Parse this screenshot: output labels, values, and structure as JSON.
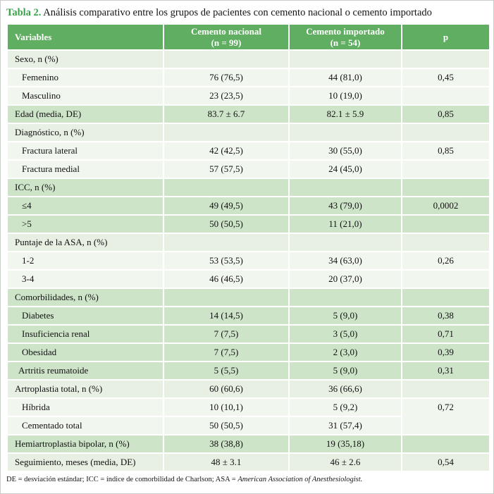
{
  "title": {
    "label": "Tabla 2.",
    "text": " Análisis comparativo entre los grupos de pacientes con cemento nacional o cemento importado"
  },
  "colors": {
    "header_green": "#60ae61",
    "title_green": "#3aa34a",
    "row_dark": "#cee4c9",
    "row_mid": "#e8efe3",
    "row_light": "#f1f7ee"
  },
  "table": {
    "headers": [
      {
        "line1": "Variables",
        "line2": ""
      },
      {
        "line1": "Cemento nacional",
        "line2": "(n = 99)"
      },
      {
        "line1": "Cemento importado",
        "line2": "(n = 54)"
      },
      {
        "line1": "p",
        "line2": ""
      }
    ],
    "rows": [
      {
        "cells": [
          "Sexo, n (%)",
          "",
          "",
          ""
        ],
        "shade": "mid",
        "indent": 0
      },
      {
        "cells": [
          "Femenino",
          "76 (76,5)",
          "44 (81,0)",
          "0,45"
        ],
        "shade": "light",
        "indent": 1
      },
      {
        "cells": [
          "Masculino",
          "23 (23,5)",
          "10 (19,0)",
          ""
        ],
        "shade": "light",
        "indent": 1
      },
      {
        "cells": [
          "Edad (media, DE)",
          "83.7 ± 6.7",
          "82.1 ± 5.9",
          "0,85"
        ],
        "shade": "dark",
        "indent": 0
      },
      {
        "cells": [
          "Diagnóstico, n (%)",
          "",
          "",
          ""
        ],
        "shade": "mid",
        "indent": 0
      },
      {
        "cells": [
          "Fractura lateral",
          "42 (42,5)",
          "30 (55,0)",
          "0,85"
        ],
        "shade": "light",
        "indent": 1
      },
      {
        "cells": [
          "Fractura medial",
          "57 (57,5)",
          "24 (45,0)",
          ""
        ],
        "shade": "light",
        "indent": 1
      },
      {
        "cells": [
          "ICC, n (%)",
          "",
          "",
          ""
        ],
        "shade": "dark",
        "indent": 0
      },
      {
        "cells": [
          "≤4",
          "49 (49,5)",
          "43 (79,0)",
          "0,0002"
        ],
        "shade": "dark",
        "indent": 1
      },
      {
        "cells": [
          ">5",
          "50 (50,5)",
          "11 (21,0)",
          ""
        ],
        "shade": "dark",
        "indent": 1
      },
      {
        "cells": [
          "Puntaje de la ASA, n (%)",
          "",
          "",
          ""
        ],
        "shade": "mid",
        "indent": 0
      },
      {
        "cells": [
          "1-2",
          "53 (53,5)",
          "34 (63,0)",
          "0,26"
        ],
        "shade": "light",
        "indent": 1
      },
      {
        "cells": [
          "3-4",
          "46 (46,5)",
          "20 (37,0)",
          ""
        ],
        "shade": "light",
        "indent": 1
      },
      {
        "cells": [
          "Comorbilidades, n (%)",
          "",
          "",
          ""
        ],
        "shade": "dark",
        "indent": 0
      },
      {
        "cells": [
          "Diabetes",
          "14 (14,5)",
          "5 (9,0)",
          "0,38"
        ],
        "shade": "dark",
        "indent": 1
      },
      {
        "cells": [
          "Insuficiencia renal",
          "7 (7,5)",
          "3 (5,0)",
          "0,71"
        ],
        "shade": "dark",
        "indent": 1
      },
      {
        "cells": [
          "Obesidad",
          "7 (7,5)",
          "2 (3,0)",
          "0,39"
        ],
        "shade": "dark",
        "indent": 1
      },
      {
        "cells": [
          "Artritis reumatoide",
          "5 (5,5)",
          "5 (9,0)",
          "0,31"
        ],
        "shade": "dark",
        "indent": "half"
      },
      {
        "cells": [
          "Artroplastia total, n (%)",
          "60 (60,6)",
          "36 (66,6)",
          ""
        ],
        "shade": "mid",
        "indent": 0
      },
      {
        "cells": [
          "Híbrida",
          "10 (10,1)",
          "5 (9,2)",
          "0,72"
        ],
        "shade": "light",
        "indent": 1,
        "p_rowspan": 2
      },
      {
        "cells": [
          "Cementado total",
          "50 (50,5)",
          "31 (57,4)",
          null
        ],
        "shade": "light",
        "indent": 1
      },
      {
        "cells": [
          "Hemiartroplastia bipolar, n (%)",
          "38 (38,8)",
          "19 (35,18)",
          ""
        ],
        "shade": "dark",
        "indent": 0
      },
      {
        "cells": [
          "Seguimiento, meses (media, DE)",
          "48 ± 3.1",
          "46 ± 2.6",
          "0,54"
        ],
        "shade": "mid",
        "indent": 0
      }
    ]
  },
  "footnote": {
    "normal": "DE = desviación estándar; ICC = índice de comorbilidad de Charlson; ASA = ",
    "italic": "American Association of Anesthesiologist."
  }
}
